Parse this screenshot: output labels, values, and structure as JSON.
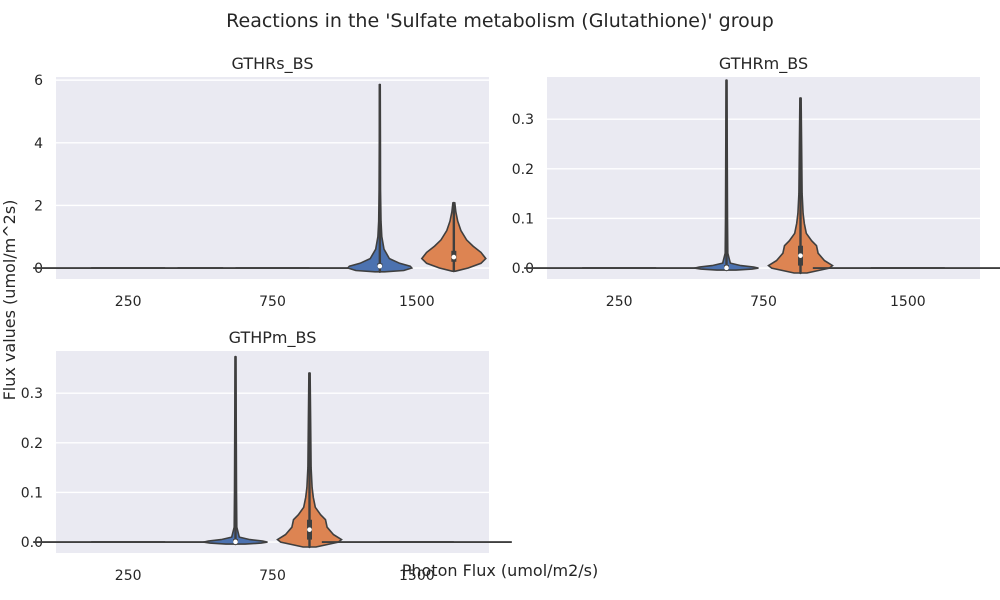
{
  "figure": {
    "title": "Reactions in the 'Sulfate metabolism (Glutathione)' group",
    "ylabel": "Flux values (umol/m^2s)",
    "xlabel": "Photon Flux (umol/m2/s)"
  },
  "colors": {
    "background": "#eaeaf2",
    "grid": "#ffffff",
    "outline": "#3f3f3f",
    "series_blue": "#4c72b0",
    "series_orange": "#dd8452"
  },
  "chart_data": [
    {
      "type": "violin",
      "title": "GTHRs_BS",
      "categories": [
        "250",
        "750",
        "1500"
      ],
      "ylim": [
        -0.35,
        6.1
      ],
      "yticks": [
        0,
        2,
        4,
        6
      ],
      "grid": true,
      "groups": [
        {
          "category": "250",
          "hue_index": 0,
          "color": "#4c72b0",
          "min": 0,
          "q1": 0,
          "median": 0,
          "q3": 0,
          "max": 0,
          "flat": true
        },
        {
          "category": "250",
          "hue_index": 1,
          "color": "#dd8452",
          "min": 0,
          "q1": 0,
          "median": 0,
          "q3": 0,
          "max": 0,
          "flat": true
        },
        {
          "category": "750",
          "hue_index": 0,
          "color": "#4c72b0",
          "min": 0,
          "q1": 0,
          "median": 0,
          "q3": 0,
          "max": 0,
          "flat": true
        },
        {
          "category": "750",
          "hue_index": 1,
          "color": "#dd8452",
          "min": 0,
          "q1": 0,
          "median": 0,
          "q3": 0,
          "max": 0,
          "flat": true
        },
        {
          "category": "1500",
          "hue_index": 0,
          "color": "#4c72b0",
          "min": -0.12,
          "q1": 0.02,
          "median": 0.06,
          "q3": 0.15,
          "max": 5.85,
          "flat": false,
          "density": [
            [
              -0.12,
              0.15
            ],
            [
              -0.08,
              0.75
            ],
            [
              0.0,
              1.0
            ],
            [
              0.06,
              0.95
            ],
            [
              0.15,
              0.62
            ],
            [
              0.3,
              0.3
            ],
            [
              0.6,
              0.13
            ],
            [
              1.0,
              0.06
            ],
            [
              1.5,
              0.035
            ],
            [
              2.5,
              0.022
            ],
            [
              4.0,
              0.018
            ],
            [
              5.85,
              0.012
            ]
          ]
        },
        {
          "category": "1500",
          "hue_index": 1,
          "color": "#dd8452",
          "min": -0.1,
          "q1": 0.2,
          "median": 0.35,
          "q3": 0.55,
          "max": 2.08,
          "flat": false,
          "density": [
            [
              -0.1,
              0.05
            ],
            [
              0.0,
              0.45
            ],
            [
              0.15,
              0.85
            ],
            [
              0.3,
              1.0
            ],
            [
              0.5,
              0.85
            ],
            [
              0.7,
              0.6
            ],
            [
              0.9,
              0.4
            ],
            [
              1.2,
              0.22
            ],
            [
              1.5,
              0.12
            ],
            [
              1.8,
              0.06
            ],
            [
              2.08,
              0.03
            ]
          ]
        }
      ]
    },
    {
      "type": "violin",
      "title": "GTHRm_BS",
      "categories": [
        "250",
        "750",
        "1500"
      ],
      "ylim": [
        -0.022,
        0.385
      ],
      "yticks": [
        0.0,
        0.1,
        0.2,
        0.3
      ],
      "grid": true,
      "groups": [
        {
          "category": "250",
          "hue_index": 0,
          "color": "#4c72b0",
          "min": 0,
          "q1": 0,
          "median": 0,
          "q3": 0,
          "max": 0,
          "flat": true
        },
        {
          "category": "250",
          "hue_index": 1,
          "color": "#dd8452",
          "min": 0,
          "q1": 0,
          "median": 0,
          "q3": 0,
          "max": 0,
          "flat": true
        },
        {
          "category": "750",
          "hue_index": 0,
          "color": "#4c72b0",
          "min": -0.004,
          "q1": 0.0,
          "median": 0.0005,
          "q3": 0.003,
          "max": 0.378,
          "flat": false,
          "density": [
            [
              -0.004,
              0.3
            ],
            [
              -0.002,
              0.8
            ],
            [
              0.0,
              1.0
            ],
            [
              0.002,
              0.85
            ],
            [
              0.005,
              0.45
            ],
            [
              0.01,
              0.12
            ],
            [
              0.03,
              0.04
            ],
            [
              0.1,
              0.03
            ],
            [
              0.2,
              0.025
            ],
            [
              0.3,
              0.02
            ],
            [
              0.378,
              0.012
            ]
          ]
        },
        {
          "category": "750",
          "hue_index": 1,
          "color": "#dd8452",
          "min": -0.01,
          "q1": 0.005,
          "median": 0.025,
          "q3": 0.045,
          "max": 0.342,
          "flat": false,
          "density": [
            [
              -0.01,
              0.2
            ],
            [
              0.0,
              0.9
            ],
            [
              0.005,
              1.0
            ],
            [
              0.015,
              0.75
            ],
            [
              0.03,
              0.55
            ],
            [
              0.045,
              0.5
            ],
            [
              0.055,
              0.35
            ],
            [
              0.07,
              0.18
            ],
            [
              0.09,
              0.12
            ],
            [
              0.11,
              0.08
            ],
            [
              0.15,
              0.05
            ],
            [
              0.25,
              0.035
            ],
            [
              0.342,
              0.02
            ]
          ]
        },
        {
          "category": "1500",
          "hue_index": 0,
          "color": "#4c72b0",
          "min": 0,
          "q1": 0,
          "median": 0,
          "q3": 0,
          "max": 0,
          "flat": true
        },
        {
          "category": "1500",
          "hue_index": 1,
          "color": "#dd8452",
          "min": 0,
          "q1": 0,
          "median": 0,
          "q3": 0,
          "max": 0,
          "flat": true
        }
      ]
    },
    {
      "type": "violin",
      "title": "GTHPm_BS",
      "categories": [
        "250",
        "750",
        "1500"
      ],
      "ylim": [
        -0.022,
        0.385
      ],
      "yticks": [
        0.0,
        0.1,
        0.2,
        0.3
      ],
      "grid": true,
      "groups": [
        {
          "category": "250",
          "hue_index": 0,
          "color": "#4c72b0",
          "min": 0,
          "q1": 0,
          "median": 0,
          "q3": 0,
          "max": 0,
          "flat": true
        },
        {
          "category": "250",
          "hue_index": 1,
          "color": "#dd8452",
          "min": 0,
          "q1": 0,
          "median": 0,
          "q3": 0,
          "max": 0,
          "flat": true
        },
        {
          "category": "750",
          "hue_index": 0,
          "color": "#4c72b0",
          "min": -0.004,
          "q1": 0.0,
          "median": 0.0005,
          "q3": 0.003,
          "max": 0.373,
          "flat": false,
          "density": [
            [
              -0.004,
              0.3
            ],
            [
              -0.002,
              0.8
            ],
            [
              0.0,
              1.0
            ],
            [
              0.002,
              0.85
            ],
            [
              0.005,
              0.45
            ],
            [
              0.01,
              0.12
            ],
            [
              0.03,
              0.04
            ],
            [
              0.1,
              0.03
            ],
            [
              0.2,
              0.025
            ],
            [
              0.3,
              0.02
            ],
            [
              0.373,
              0.012
            ]
          ]
        },
        {
          "category": "750",
          "hue_index": 1,
          "color": "#dd8452",
          "min": -0.01,
          "q1": 0.005,
          "median": 0.025,
          "q3": 0.045,
          "max": 0.34,
          "flat": false,
          "density": [
            [
              -0.01,
              0.2
            ],
            [
              0.0,
              0.9
            ],
            [
              0.005,
              1.0
            ],
            [
              0.015,
              0.75
            ],
            [
              0.03,
              0.55
            ],
            [
              0.045,
              0.5
            ],
            [
              0.055,
              0.35
            ],
            [
              0.07,
              0.18
            ],
            [
              0.09,
              0.12
            ],
            [
              0.11,
              0.08
            ],
            [
              0.15,
              0.05
            ],
            [
              0.25,
              0.035
            ],
            [
              0.34,
              0.02
            ]
          ]
        },
        {
          "category": "1500",
          "hue_index": 0,
          "color": "#4c72b0",
          "min": 0,
          "q1": 0,
          "median": 0,
          "q3": 0,
          "max": 0,
          "flat": true
        },
        {
          "category": "1500",
          "hue_index": 1,
          "color": "#dd8452",
          "min": 0,
          "q1": 0,
          "median": 0,
          "q3": 0,
          "max": 0,
          "flat": true
        }
      ]
    }
  ]
}
